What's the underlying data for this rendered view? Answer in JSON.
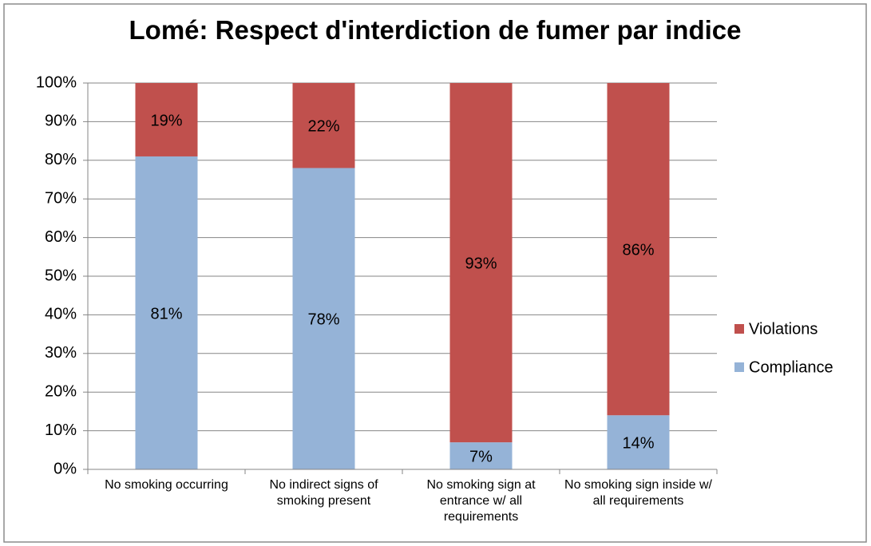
{
  "chart_data": {
    "type": "stacked_bar",
    "title": "Lomé: Respect d'interdiction de fumer par indice",
    "categories": [
      "No smoking occurring",
      "No indirect signs of smoking present",
      "No smoking sign at entrance w/ all requirements",
      "No smoking sign inside w/ all requirements"
    ],
    "series": [
      {
        "name": "Compliance",
        "color": "#95b3d7",
        "values": [
          81,
          78,
          7,
          14
        ],
        "value_labels": [
          "81%",
          "78%",
          "7%",
          "14%"
        ]
      },
      {
        "name": "Violations",
        "color": "#c0504d",
        "values": [
          19,
          22,
          93,
          86
        ],
        "value_labels": [
          "19%",
          "22%",
          "93%",
          "86%"
        ]
      }
    ],
    "ylim": [
      0,
      100
    ],
    "yticks": [
      {
        "value": 0,
        "label": "0%"
      },
      {
        "value": 10,
        "label": "10%"
      },
      {
        "value": 20,
        "label": "20%"
      },
      {
        "value": 30,
        "label": "30%"
      },
      {
        "value": 40,
        "label": "40%"
      },
      {
        "value": 50,
        "label": "50%"
      },
      {
        "value": 60,
        "label": "60%"
      },
      {
        "value": 70,
        "label": "70%"
      },
      {
        "value": 80,
        "label": "80%"
      },
      {
        "value": 90,
        "label": "90%"
      },
      {
        "value": 100,
        "label": "100%"
      }
    ],
    "grid": true,
    "legend": "right"
  }
}
